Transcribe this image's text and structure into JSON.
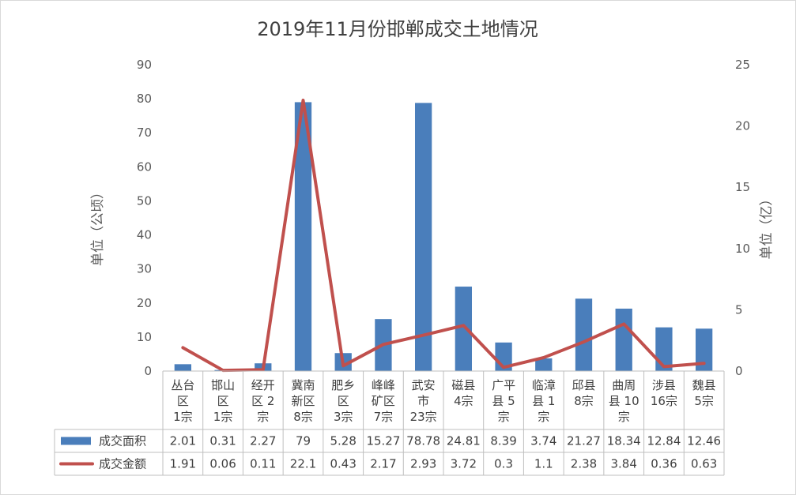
{
  "chart_data": {
    "type": "bar",
    "title": "2019年11月份邯郸成交土地情况",
    "categories": [
      [
        "丛台",
        "区",
        "1宗"
      ],
      [
        "邯山",
        "区",
        "1宗"
      ],
      [
        "经开",
        "区 2",
        "宗"
      ],
      [
        "冀南",
        "新区",
        "8宗"
      ],
      [
        "肥乡",
        "区",
        "3宗"
      ],
      [
        "峰峰",
        "矿区",
        "7宗"
      ],
      [
        "武安",
        "市",
        "23宗"
      ],
      [
        "磁县",
        "4宗"
      ],
      [
        "广平",
        "县 5",
        "宗"
      ],
      [
        "临漳",
        "县 1",
        "宗"
      ],
      [
        "邱县",
        "8宗"
      ],
      [
        "曲周",
        "县 10",
        "宗"
      ],
      [
        "涉县",
        "16宗"
      ],
      [
        "魏县",
        "5宗"
      ]
    ],
    "ylabel_left": "单位（公顷）",
    "ylabel_right": "单位（亿）",
    "ylim_left": [
      0,
      90
    ],
    "ylim_right": [
      0,
      25
    ],
    "yticks_left": [
      0,
      10,
      20,
      30,
      40,
      50,
      60,
      70,
      80,
      90
    ],
    "yticks_right": [
      0,
      5,
      10,
      15,
      20,
      25
    ],
    "grid": false,
    "legend": "data-table",
    "series": [
      {
        "name": "成交面积",
        "type": "bar",
        "axis": "left",
        "color": "#4a7ebb",
        "values": [
          2.01,
          0.31,
          2.27,
          79,
          5.28,
          15.27,
          78.78,
          24.81,
          8.39,
          3.74,
          21.27,
          18.34,
          12.84,
          12.46
        ],
        "labels": [
          "2.01",
          "0.31",
          "2.27",
          "79",
          "5.28",
          "15.27",
          "78.78",
          "24.81",
          "8.39",
          "3.74",
          "21.27",
          "18.34",
          "12.84",
          "12.46"
        ]
      },
      {
        "name": "成交金额",
        "type": "line",
        "axis": "right",
        "color": "#c0504d",
        "values": [
          1.91,
          0.06,
          0.11,
          22.1,
          0.43,
          2.17,
          2.93,
          3.72,
          0.3,
          1.1,
          2.38,
          3.84,
          0.36,
          0.63
        ],
        "labels": [
          "1.91",
          "0.06",
          "0.11",
          "22.1",
          "0.43",
          "2.17",
          "2.93",
          "3.72",
          "0.3",
          "1.1",
          "2.38",
          "3.84",
          "0.36",
          "0.63"
        ]
      }
    ]
  }
}
